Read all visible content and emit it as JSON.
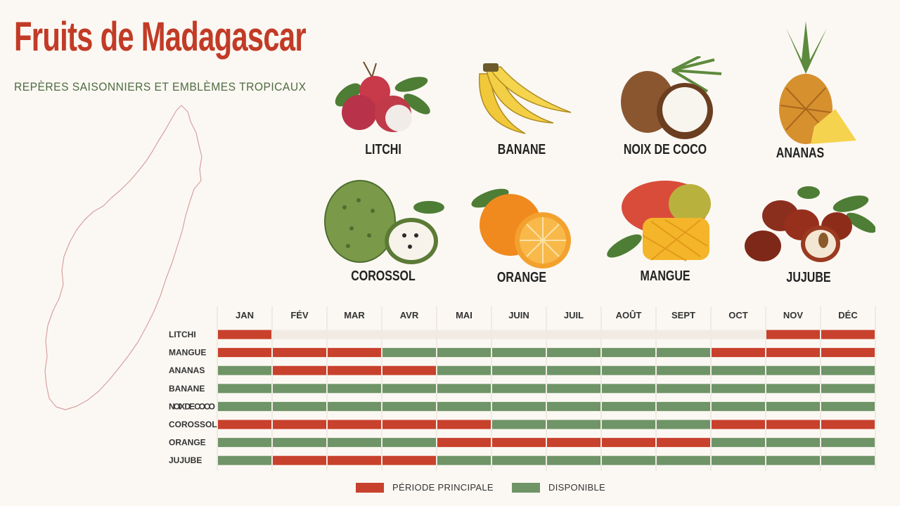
{
  "title": "Fruits de Madagascar",
  "subtitle": "REPÈRES SAISONNIERS ET EMBLÈMES TROPICAUX",
  "colors": {
    "principal": "#c8412c",
    "disponible": "#6f9467",
    "none": "#f2ebe4",
    "title": "#c23b26",
    "subtitle": "#4f6b41"
  },
  "fruits": [
    {
      "label": "LITCHI",
      "icon": "litchi-icon"
    },
    {
      "label": "BANANE",
      "icon": "banane-icon"
    },
    {
      "label": "NOIX DE COCO",
      "icon": "noix-de-coco-icon"
    },
    {
      "label": "ANANAS",
      "icon": "ananas-icon"
    },
    {
      "label": "COROSSOL",
      "icon": "corossol-icon"
    },
    {
      "label": "ORANGE",
      "icon": "orange-icon"
    },
    {
      "label": "MANGUE",
      "icon": "mangue-icon"
    },
    {
      "label": "JUJUBE",
      "icon": "jujube-icon"
    }
  ],
  "legend": {
    "principal": "PÉRIODE PRINCIPALE",
    "disponible": "DISPONIBLE"
  },
  "chart_data": {
    "type": "heatmap",
    "months": [
      "JAN",
      "FÉV",
      "MAR",
      "AVR",
      "MAI",
      "JUIN",
      "JUIL",
      "AOÛT",
      "SEPT",
      "OCT",
      "NOV",
      "DÉC"
    ],
    "status_legend": {
      "P": "PÉRIODE PRINCIPALE",
      "D": "DISPONIBLE",
      "-": ""
    },
    "rows": [
      {
        "fruit": "LITCHI",
        "status": [
          "P",
          "-",
          "-",
          "-",
          "-",
          "-",
          "-",
          "-",
          "-",
          "-",
          "P",
          "P"
        ]
      },
      {
        "fruit": "MANGUE",
        "status": [
          "P",
          "P",
          "P",
          "D",
          "D",
          "D",
          "D",
          "D",
          "D",
          "P",
          "P",
          "P"
        ]
      },
      {
        "fruit": "ANANAS",
        "status": [
          "D",
          "P",
          "P",
          "P",
          "D",
          "D",
          "D",
          "D",
          "D",
          "D",
          "D",
          "D"
        ]
      },
      {
        "fruit": "BANANE",
        "status": [
          "D",
          "D",
          "D",
          "D",
          "D",
          "D",
          "D",
          "D",
          "D",
          "D",
          "D",
          "D"
        ]
      },
      {
        "fruit": "NOIX DE COCO",
        "status": [
          "D",
          "D",
          "D",
          "D",
          "D",
          "D",
          "D",
          "D",
          "D",
          "D",
          "D",
          "D"
        ]
      },
      {
        "fruit": "COROSSOL",
        "status": [
          "P",
          "P",
          "P",
          "P",
          "P",
          "D",
          "D",
          "D",
          "D",
          "P",
          "P",
          "P"
        ]
      },
      {
        "fruit": "ORANGE",
        "status": [
          "D",
          "D",
          "D",
          "D",
          "P",
          "P",
          "P",
          "P",
          "P",
          "D",
          "D",
          "D"
        ]
      },
      {
        "fruit": "JUJUBE",
        "status": [
          "D",
          "P",
          "P",
          "P",
          "D",
          "D",
          "D",
          "D",
          "D",
          "D",
          "D",
          "D"
        ]
      }
    ]
  }
}
